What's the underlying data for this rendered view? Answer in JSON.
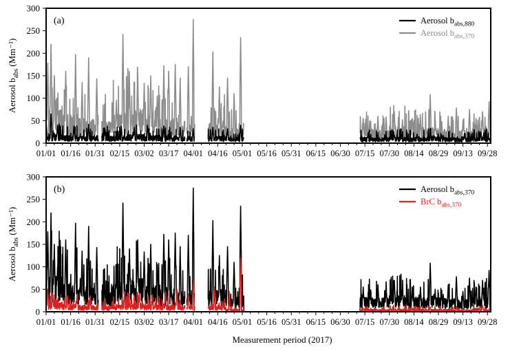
{
  "figure": {
    "xlabel": "Measurement period (2017)"
  },
  "chart_data": [
    {
      "panel_label": "(a)",
      "type": "line",
      "title": "",
      "ylabel_main": "Aerosol b",
      "ylabel_sub": "abs",
      "ylabel_unit": "(Mm⁻¹)",
      "xlabel": "",
      "x_unit": "day of year 2017",
      "xlim": [
        1,
        273
      ],
      "ylim": [
        0,
        300
      ],
      "yticks": [
        0,
        50,
        100,
        150,
        200,
        250,
        300
      ],
      "xtick_labels": [
        "01/01",
        "01/16",
        "01/31",
        "02/15",
        "03/02",
        "03/17",
        "04/01",
        "04/16",
        "05/01",
        "05/16",
        "05/31",
        "06/15",
        "06/30",
        "07/15",
        "07/30",
        "08/14",
        "08/29",
        "09/13",
        "09/28"
      ],
      "xtick_days": [
        1,
        16,
        31,
        46,
        61,
        76,
        91,
        106,
        121,
        136,
        151,
        166,
        181,
        196,
        211,
        226,
        241,
        256,
        271
      ],
      "legend_position": "top-right",
      "gap_days": [
        [
          33,
          35
        ],
        [
          86,
          87
        ],
        [
          92,
          100
        ],
        [
          122,
          193
        ]
      ],
      "series": [
        {
          "name": "Aerosol b",
          "name_sub": "abs,880",
          "color": "#000000",
          "typical": [
            1,
            18,
            16,
            14,
            16,
            15,
            18,
            16,
            15,
            14,
            13,
            14,
            12,
            15,
            13,
            17,
            13,
            11,
            10,
            13,
            12,
            11,
            13,
            12,
            14,
            12,
            11,
            13,
            10,
            11
          ],
          "peaks": [
            [
              1,
              48
            ],
            [
              4,
              65
            ],
            [
              8,
              40
            ],
            [
              18,
              38
            ],
            [
              27,
              42
            ],
            [
              37,
              30
            ],
            [
              47,
              38
            ],
            [
              55,
              35
            ],
            [
              63,
              40
            ],
            [
              73,
              38
            ],
            [
              83,
              35
            ],
            [
              91,
              32
            ],
            [
              103,
              35
            ],
            [
              112,
              32
            ],
            [
              120,
              40
            ],
            [
              198,
              22
            ],
            [
              214,
              18
            ],
            [
              228,
              20
            ],
            [
              243,
              18
            ],
            [
              257,
              22
            ],
            [
              267,
              25
            ]
          ]
        },
        {
          "name": "Aerosol b",
          "name_sub": "abs,370",
          "color": "#8c8c8c",
          "typical": [
            1,
            75,
            60,
            50,
            45,
            60,
            70,
            55,
            50,
            45,
            40,
            45,
            30,
            40,
            35,
            42,
            35,
            30,
            25,
            32,
            30,
            28,
            35,
            30,
            32,
            28,
            26,
            30,
            24,
            25
          ],
          "peaks": [
            [
              2,
              178
            ],
            [
              4,
              220
            ],
            [
              6,
              150
            ],
            [
              8,
              100
            ],
            [
              13,
              160
            ],
            [
              19,
              197
            ],
            [
              23,
              135
            ],
            [
              27,
              190
            ],
            [
              32,
              143
            ],
            [
              44,
              95
            ],
            [
              48,
              242
            ],
            [
              52,
              140
            ],
            [
              57,
              160
            ],
            [
              61,
              133
            ],
            [
              65,
              150
            ],
            [
              69,
              105
            ],
            [
              73,
              172
            ],
            [
              76,
              160
            ],
            [
              80,
              175
            ],
            [
              83,
              145
            ],
            [
              88,
              170
            ],
            [
              91,
              275
            ],
            [
              103,
              203
            ],
            [
              107,
              125
            ],
            [
              112,
              145
            ],
            [
              116,
              110
            ],
            [
              120,
              235
            ],
            [
              195,
              55
            ],
            [
              199,
              50
            ],
            [
              204,
              60
            ],
            [
              209,
              58
            ],
            [
              214,
              70
            ],
            [
              219,
              52
            ],
            [
              225,
              55
            ],
            [
              230,
              55
            ],
            [
              236,
              108
            ],
            [
              239,
              50
            ],
            [
              243,
              48
            ],
            [
              247,
              60
            ],
            [
              252,
              78
            ],
            [
              256,
              45
            ],
            [
              260,
              75
            ],
            [
              264,
              55
            ],
            [
              268,
              70
            ],
            [
              272,
              92
            ]
          ]
        }
      ]
    },
    {
      "panel_label": "(b)",
      "type": "line",
      "title": "",
      "ylabel_main": "Aerosol b",
      "ylabel_sub": "abs",
      "ylabel_unit": "(Mm⁻¹)",
      "xlabel": "Measurement period (2017)",
      "x_unit": "day of year 2017",
      "xlim": [
        1,
        273
      ],
      "ylim": [
        0,
        300
      ],
      "yticks": [
        0,
        50,
        100,
        150,
        200,
        250,
        300
      ],
      "xtick_labels": [
        "01/01",
        "01/16",
        "01/31",
        "02/15",
        "03/02",
        "03/17",
        "04/01",
        "04/16",
        "05/01",
        "05/16",
        "05/31",
        "06/15",
        "06/30",
        "07/15",
        "07/30",
        "08/14",
        "08/29",
        "09/13",
        "09/28"
      ],
      "xtick_days": [
        1,
        16,
        31,
        46,
        61,
        76,
        91,
        106,
        121,
        136,
        151,
        166,
        181,
        196,
        211,
        226,
        241,
        256,
        271
      ],
      "legend_position": "top-right",
      "gap_days": [
        [
          33,
          35
        ],
        [
          86,
          87
        ],
        [
          92,
          100
        ]
      ],
      "flat_zero_range": [
        122,
        193
      ],
      "series": [
        {
          "name": "Aerosol b",
          "name_sub": "abs,370",
          "color": "#000000",
          "typical": [
            1,
            75,
            60,
            50,
            45,
            60,
            70,
            55,
            50,
            45,
            40,
            45,
            30,
            40,
            35,
            42,
            35,
            30,
            25,
            32,
            30,
            28,
            35,
            30,
            32,
            28,
            26,
            30,
            24,
            25
          ],
          "peaks": [
            [
              2,
              178
            ],
            [
              4,
              220
            ],
            [
              6,
              150
            ],
            [
              8,
              100
            ],
            [
              13,
              160
            ],
            [
              19,
              197
            ],
            [
              23,
              135
            ],
            [
              27,
              190
            ],
            [
              32,
              143
            ],
            [
              44,
              95
            ],
            [
              48,
              242
            ],
            [
              52,
              140
            ],
            [
              57,
              160
            ],
            [
              61,
              133
            ],
            [
              65,
              150
            ],
            [
              69,
              105
            ],
            [
              73,
              172
            ],
            [
              76,
              160
            ],
            [
              80,
              175
            ],
            [
              83,
              145
            ],
            [
              88,
              170
            ],
            [
              91,
              275
            ],
            [
              103,
              203
            ],
            [
              107,
              125
            ],
            [
              112,
              145
            ],
            [
              116,
              110
            ],
            [
              120,
              235
            ],
            [
              195,
              55
            ],
            [
              199,
              50
            ],
            [
              204,
              60
            ],
            [
              209,
              58
            ],
            [
              214,
              70
            ],
            [
              219,
              52
            ],
            [
              225,
              55
            ],
            [
              230,
              55
            ],
            [
              236,
              108
            ],
            [
              239,
              50
            ],
            [
              243,
              48
            ],
            [
              247,
              60
            ],
            [
              252,
              78
            ],
            [
              256,
              45
            ],
            [
              260,
              75
            ],
            [
              264,
              55
            ],
            [
              268,
              70
            ],
            [
              272,
              92
            ]
          ]
        },
        {
          "name": "BrC b",
          "name_sub": "abs,370",
          "color": "#e02020",
          "typical": [
            1,
            20,
            16,
            13,
            12,
            14,
            18,
            15,
            14,
            13,
            11,
            12,
            5,
            5,
            5,
            6,
            5,
            5,
            4,
            5,
            5,
            5,
            6,
            5,
            5,
            5,
            4,
            5,
            4,
            5
          ],
          "peaks": [
            [
              2,
              50
            ],
            [
              5,
              42
            ],
            [
              14,
              35
            ],
            [
              20,
              40
            ],
            [
              28,
              35
            ],
            [
              49,
              45
            ],
            [
              58,
              40
            ],
            [
              66,
              38
            ],
            [
              74,
              45
            ],
            [
              81,
              50
            ],
            [
              88,
              40
            ],
            [
              91,
              70
            ],
            [
              104,
              55
            ],
            [
              113,
              45
            ],
            [
              120,
              120
            ],
            [
              236,
              10
            ],
            [
              252,
              12
            ],
            [
              268,
              14
            ]
          ]
        }
      ]
    }
  ]
}
